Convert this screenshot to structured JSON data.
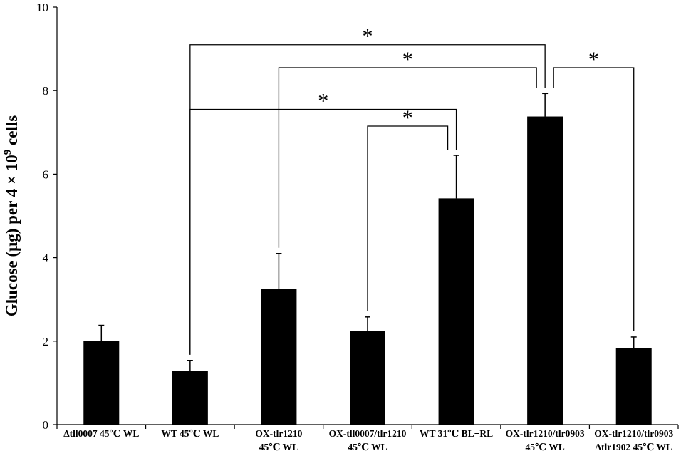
{
  "chart_data": {
    "type": "bar",
    "ylabel": "Glucose (μg) per 4 × 10",
    "ylabel_sup": "9",
    "ylabel_suffix": " cells",
    "ylim": [
      0,
      10
    ],
    "yticks": [
      "0",
      "2",
      "4",
      "6",
      "8",
      "10"
    ],
    "grid": false,
    "bar_color": "#000000",
    "categories": [
      [
        "Δtll0007 45℃ WL"
      ],
      [
        "WT 45℃ WL"
      ],
      [
        "OX-tlr1210",
        "45℃ WL"
      ],
      [
        "OX-tll0007/tlr1210",
        "45℃ WL"
      ],
      [
        "WT 31℃ BL+RL"
      ],
      [
        "OX-tlr1210/tlr0903",
        "45℃ WL"
      ],
      [
        "OX-tlr1210/tlr0903",
        "Δtlr1902 45℃ WL"
      ]
    ],
    "values": [
      2.0,
      1.28,
      3.25,
      2.25,
      5.42,
      7.38,
      1.83
    ],
    "errors": [
      0.38,
      0.26,
      0.85,
      0.33,
      1.03,
      0.55,
      0.27
    ],
    "significance": [
      {
        "from": 1,
        "to": 5,
        "y": 9.1,
        "label": "*"
      },
      {
        "from": 2,
        "to": 5,
        "y": 8.55,
        "label": "*"
      },
      {
        "from": 5,
        "to": 6,
        "y": 8.55,
        "label": "*"
      },
      {
        "from": 1,
        "to": 4,
        "y": 7.55,
        "label": "*"
      },
      {
        "from": 3,
        "to": 4,
        "y": 7.15,
        "label": "*"
      }
    ]
  }
}
